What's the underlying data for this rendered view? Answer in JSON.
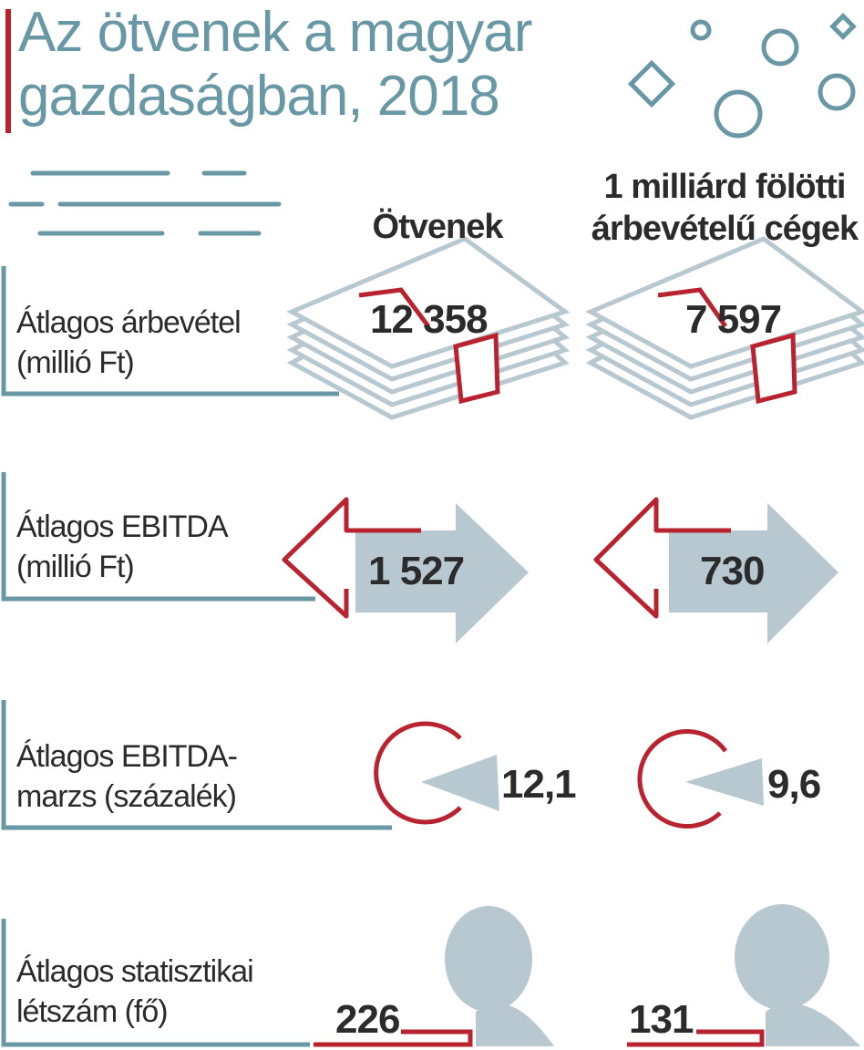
{
  "title": {
    "line1": "Az ötvenek a magyar",
    "line2": "gazdaságban, 2018"
  },
  "columns": {
    "left": "Ötvenek",
    "right_line1": "1 milliárd fölötti",
    "right_line2": "árbevételű cégek"
  },
  "rows": [
    {
      "label_line1": "Átlagos árbevétel",
      "label_line2": "(millió Ft)",
      "icon": "money-stack-icon",
      "left_value": "12 358",
      "right_value": "7 597"
    },
    {
      "label_line1": "Átlagos EBITDA",
      "label_line2": "(millió Ft)",
      "icon": "arrows-icon",
      "left_value": "1 527",
      "right_value": "730"
    },
    {
      "label_line1": "Átlagos EBITDA-",
      "label_line2": "marzs (százalék)",
      "icon": "pie-slice-icon",
      "left_value": "12,1",
      "right_value": "9,6"
    },
    {
      "label_line1": "Átlagos statisztikai",
      "label_line2": "létszám (fő)",
      "icon": "person-icon",
      "left_value": "226",
      "right_value": "131"
    }
  ],
  "colors": {
    "accent_red": "#b8232f",
    "teal": "#6897a5",
    "light_blue": "#b7c8d1",
    "text": "#2b2b2b"
  }
}
